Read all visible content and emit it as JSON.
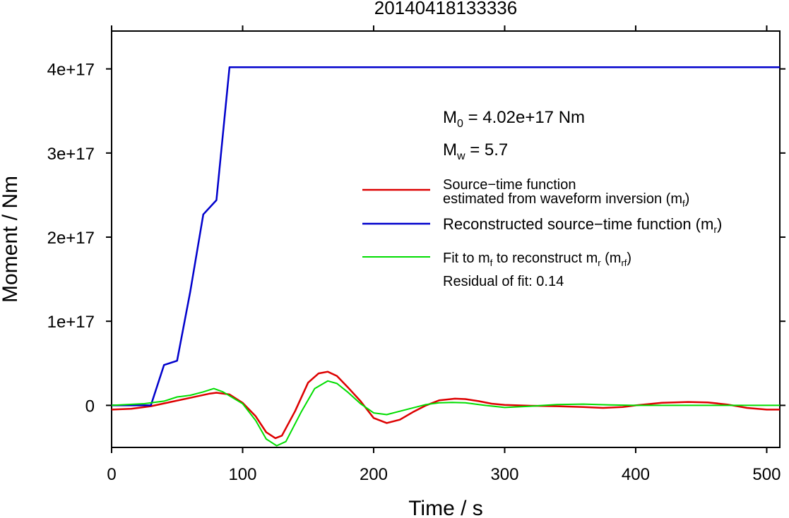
{
  "chart_data": {
    "type": "line",
    "title": "20140418133336",
    "xlabel": "Time / s",
    "ylabel": "Moment / Nm",
    "xlim": [
      0,
      510
    ],
    "ylim": [
      -5e+16,
      4.45e+17
    ],
    "x_ticks": [
      0,
      100,
      200,
      300,
      400,
      500
    ],
    "x_tick_labels": [
      "0",
      "100",
      "200",
      "300",
      "400",
      "500"
    ],
    "y_ticks": [
      0,
      1e+17,
      2e+17,
      3e+17,
      4e+17
    ],
    "y_tick_labels": [
      "0",
      "1e+17",
      "2e+17",
      "3e+17",
      "4e+17"
    ],
    "grid": false,
    "legend_position": "right",
    "annotations": {
      "m0_prefix": "M",
      "m0_sub": "0",
      "m0_text": " = 4.02e+17 Nm",
      "mw_prefix": "M",
      "mw_sub": "w",
      "mw_text": " = 5.7",
      "residual": "Residual of fit: 0.14"
    },
    "legend": [
      {
        "line1": "Source−time function",
        "line2": "estimated from waveform inversion (m",
        "sub": "f",
        "tail": ")",
        "color": "#dd0000"
      },
      {
        "line1": "Reconstructed source−time function (m",
        "sub": "r",
        "tail": ")",
        "color": "#0000cc"
      },
      {
        "line1a": "Fit to m",
        "sub1": "f",
        "line1b": " to reconstruct m",
        "sub2": "r",
        "line1c": " (m",
        "sub3": "rf",
        "tail": ")",
        "color": "#00dd00"
      }
    ],
    "series": [
      {
        "color": "#dd0000",
        "x": [
          0,
          15,
          30,
          45,
          60,
          75,
          80,
          90,
          100,
          110,
          118,
          125,
          130,
          140,
          150,
          158,
          165,
          172,
          180,
          190,
          200,
          210,
          220,
          230,
          240,
          250,
          262,
          270,
          280,
          290,
          300,
          320,
          340,
          360,
          375,
          390,
          400,
          420,
          440,
          455,
          470,
          485,
          500,
          510
        ],
        "y": [
          -5000000000000000.0,
          -4000000000000000.0,
          -1000000000000000.0,
          4000000000000000.0,
          9000000000000000.0,
          1.4e+16,
          1.5e+16,
          1.3e+16,
          3000000000000000.0,
          -1.3e+16,
          -3.2e+16,
          -3.9e+16,
          -3.6e+16,
          -7000000000000000.0,
          2.7e+16,
          3.8e+16,
          4e+16,
          3.5e+16,
          2.2e+16,
          5000000000000000.0,
          -1.5e+16,
          -2.1e+16,
          -1.7e+16,
          -8000000000000000.0,
          0,
          6000000000000000.0,
          8000000000000000.0,
          7500000000000000.0,
          5000000000000000.0,
          2000000000000000.0,
          500000000000000.0,
          -500000000000000.0,
          -1000000000000000.0,
          -2000000000000000.0,
          -3000000000000000.0,
          -2000000000000000.0,
          0,
          3000000000000000.0,
          4000000000000000.0,
          3500000000000000.0,
          1000000000000000.0,
          -3000000000000000.0,
          -5000000000000000.0,
          -5000000000000000.0
        ]
      },
      {
        "color": "#0000cc",
        "x": [
          0,
          30,
          40,
          50,
          60,
          70,
          80,
          90,
          510
        ],
        "y": [
          0,
          0,
          4.8e+16,
          5.3e+16,
          1.35e+17,
          2.27e+17,
          2.44e+17,
          4.02e+17,
          4.02e+17
        ]
      },
      {
        "color": "#00dd00",
        "x": [
          0,
          25,
          40,
          50,
          60,
          70,
          78,
          85,
          100,
          110,
          118,
          126,
          133,
          145,
          155,
          165,
          172,
          180,
          190,
          200,
          210,
          220,
          240,
          250,
          260,
          270,
          285,
          300,
          320,
          340,
          360,
          380,
          400,
          430,
          460,
          490,
          510
        ],
        "y": [
          0,
          2000000000000000.0,
          5000000000000000.0,
          1e+16,
          1.2e+16,
          1.6e+16,
          2e+16,
          1.6e+16,
          2000000000000000.0,
          -1.8e+16,
          -4e+16,
          -4.8e+16,
          -4.3e+16,
          -7000000000000000.0,
          2e+16,
          2.9e+16,
          2.6e+16,
          1.6e+16,
          2000000000000000.0,
          -9000000000000000.0,
          -1.1e+16,
          -7000000000000000.0,
          1000000000000000.0,
          3000000000000000.0,
          3500000000000000.0,
          3000000000000000.0,
          0,
          -2500000000000000.0,
          -1000000000000000.0,
          1000000000000000.0,
          1500000000000000.0,
          500000000000000.0,
          0,
          0,
          0,
          0,
          0
        ]
      }
    ]
  }
}
